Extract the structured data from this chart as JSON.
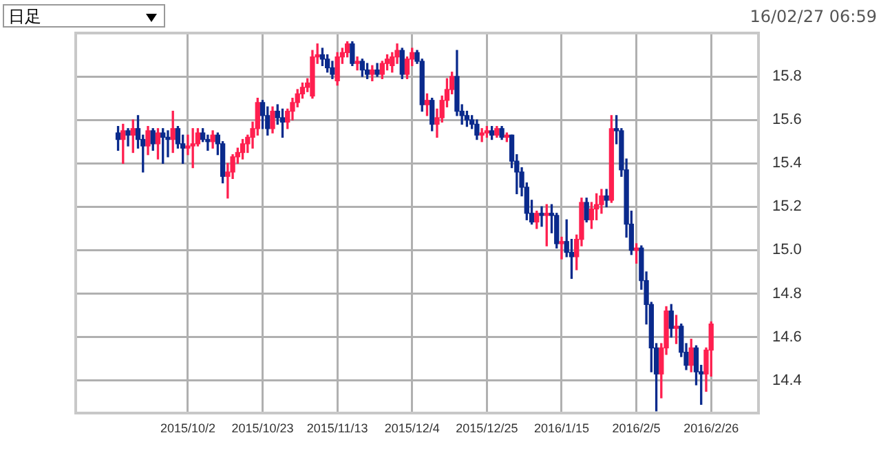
{
  "chart_data": {
    "type": "candlestick",
    "categories": [
      null,
      null,
      null,
      null,
      null,
      null,
      null,
      null,
      null,
      null,
      null,
      null,
      null,
      null,
      "2015/10/2",
      null,
      null,
      null,
      null,
      null,
      null,
      null,
      null,
      null,
      null,
      null,
      null,
      null,
      null,
      "2015/10/23",
      null,
      null,
      null,
      null,
      null,
      null,
      null,
      null,
      null,
      null,
      null,
      null,
      null,
      null,
      "2015/11/13",
      null,
      null,
      null,
      null,
      null,
      null,
      null,
      null,
      null,
      null,
      null,
      null,
      null,
      null,
      "2015/12/4",
      null,
      null,
      null,
      null,
      null,
      null,
      null,
      null,
      null,
      null,
      null,
      null,
      null,
      null,
      "2015/12/25",
      null,
      null,
      null,
      null,
      null,
      null,
      null,
      null,
      null,
      null,
      null,
      null,
      null,
      null,
      "2016/1/15",
      null,
      null,
      null,
      null,
      null,
      null,
      null,
      null,
      null,
      null,
      null,
      null,
      null,
      null,
      "2016/2/5",
      null,
      null,
      null,
      null,
      null,
      null,
      null,
      null,
      null,
      null,
      null,
      null,
      null,
      null,
      "2016/2/26"
    ],
    "ohlc": [
      [
        15.54,
        15.57,
        15.46,
        15.51
      ],
      [
        15.51,
        15.58,
        15.4,
        15.55
      ],
      [
        15.55,
        15.56,
        15.48,
        15.53
      ],
      [
        15.53,
        15.6,
        15.45,
        15.56
      ],
      [
        15.56,
        15.62,
        15.47,
        15.51
      ],
      [
        15.51,
        15.53,
        15.36,
        15.48
      ],
      [
        15.48,
        15.57,
        15.44,
        15.55
      ],
      [
        15.55,
        15.56,
        15.46,
        15.49
      ],
      [
        15.49,
        15.56,
        15.42,
        15.54
      ],
      [
        15.54,
        15.56,
        15.4,
        15.52
      ],
      [
        15.52,
        15.55,
        15.43,
        15.51
      ],
      [
        15.51,
        15.64,
        15.45,
        15.56
      ],
      [
        15.56,
        15.57,
        15.47,
        15.49
      ],
      [
        15.49,
        15.53,
        15.4,
        15.47
      ],
      [
        15.47,
        15.53,
        15.44,
        15.48
      ],
      [
        15.48,
        15.56,
        15.38,
        15.49
      ],
      [
        15.49,
        15.56,
        15.48,
        15.54
      ],
      [
        15.54,
        15.56,
        15.5,
        15.51
      ],
      [
        15.51,
        15.53,
        15.46,
        15.5
      ],
      [
        15.5,
        15.55,
        15.47,
        15.53
      ],
      [
        15.53,
        15.54,
        15.44,
        15.49
      ],
      [
        15.49,
        15.5,
        15.31,
        15.34
      ],
      [
        15.34,
        15.4,
        15.24,
        15.36
      ],
      [
        15.36,
        15.44,
        15.33,
        15.43
      ],
      [
        15.43,
        15.47,
        15.4,
        15.45
      ],
      [
        15.45,
        15.51,
        15.42,
        15.49
      ],
      [
        15.49,
        15.53,
        15.45,
        15.52
      ],
      [
        15.52,
        15.59,
        15.47,
        15.56
      ],
      [
        15.56,
        15.7,
        15.53,
        15.68
      ],
      [
        15.68,
        15.69,
        15.56,
        15.62
      ],
      [
        15.62,
        15.66,
        15.53,
        15.56
      ],
      [
        15.56,
        15.66,
        15.54,
        15.64
      ],
      [
        15.64,
        15.67,
        15.58,
        15.61
      ],
      [
        15.61,
        15.65,
        15.52,
        15.59
      ],
      [
        15.59,
        15.65,
        15.56,
        15.64
      ],
      [
        15.64,
        15.7,
        15.6,
        15.68
      ],
      [
        15.68,
        15.74,
        15.66,
        15.72
      ],
      [
        15.72,
        15.77,
        15.7,
        15.75
      ],
      [
        15.75,
        15.79,
        15.73,
        15.77
      ],
      [
        15.71,
        15.92,
        15.7,
        15.89
      ],
      [
        15.89,
        15.95,
        15.86,
        15.9
      ],
      [
        15.9,
        15.93,
        15.85,
        15.88
      ],
      [
        15.88,
        15.9,
        15.82,
        15.84
      ],
      [
        15.84,
        15.87,
        15.79,
        15.81
      ],
      [
        15.78,
        15.91,
        15.76,
        15.89
      ],
      [
        15.89,
        15.93,
        15.86,
        15.91
      ],
      [
        15.91,
        15.96,
        15.89,
        15.95
      ],
      [
        15.95,
        15.96,
        15.85,
        15.86
      ],
      [
        15.86,
        15.89,
        15.83,
        15.87
      ],
      [
        15.87,
        15.88,
        15.8,
        15.83
      ],
      [
        15.83,
        15.86,
        15.79,
        15.81
      ],
      [
        15.81,
        15.85,
        15.78,
        15.83
      ],
      [
        15.83,
        15.86,
        15.8,
        15.81
      ],
      [
        15.81,
        15.87,
        15.79,
        15.86
      ],
      [
        15.86,
        15.9,
        15.83,
        15.88
      ],
      [
        15.85,
        15.91,
        15.82,
        15.89
      ],
      [
        15.89,
        15.95,
        15.86,
        15.92
      ],
      [
        15.92,
        15.93,
        15.79,
        15.81
      ],
      [
        15.81,
        15.89,
        15.79,
        15.88
      ],
      [
        15.88,
        15.93,
        15.85,
        15.91
      ],
      [
        15.91,
        15.92,
        15.86,
        15.87
      ],
      [
        15.87,
        15.88,
        15.64,
        15.67
      ],
      [
        15.67,
        15.72,
        15.62,
        15.69
      ],
      [
        15.69,
        15.7,
        15.55,
        15.58
      ],
      [
        15.58,
        15.65,
        15.52,
        15.61
      ],
      [
        15.61,
        15.71,
        15.59,
        15.69
      ],
      [
        15.69,
        15.79,
        15.66,
        15.74
      ],
      [
        15.74,
        15.82,
        15.72,
        15.8
      ],
      [
        15.8,
        15.92,
        15.62,
        15.64
      ],
      [
        15.64,
        15.67,
        15.58,
        15.62
      ],
      [
        15.62,
        15.64,
        15.57,
        15.6
      ],
      [
        15.6,
        15.62,
        15.56,
        15.58
      ],
      [
        15.58,
        15.6,
        15.51,
        15.53
      ],
      [
        15.53,
        15.56,
        15.5,
        15.54
      ],
      [
        15.54,
        15.57,
        15.52,
        15.55
      ],
      [
        15.55,
        15.57,
        15.51,
        15.53
      ],
      [
        15.53,
        15.57,
        15.52,
        15.56
      ],
      [
        15.56,
        15.57,
        15.51,
        15.52
      ],
      [
        15.52,
        15.54,
        15.5,
        15.53
      ],
      [
        15.53,
        15.53,
        15.38,
        15.41
      ],
      [
        15.41,
        15.44,
        15.26,
        15.36
      ],
      [
        15.36,
        15.38,
        15.25,
        15.29
      ],
      [
        15.29,
        15.31,
        15.14,
        15.17
      ],
      [
        15.17,
        15.23,
        15.12,
        15.13
      ],
      [
        15.13,
        15.18,
        15.1,
        15.17
      ],
      [
        15.17,
        15.2,
        15.11,
        15.16
      ],
      [
        15.16,
        15.21,
        15.02,
        15.17
      ],
      [
        15.17,
        15.21,
        15.08,
        15.16
      ],
      [
        15.16,
        15.17,
        15.01,
        15.03
      ],
      [
        15.03,
        15.06,
        14.96,
        15.04
      ],
      [
        15.04,
        15.14,
        14.97,
        14.99
      ],
      [
        14.99,
        15.05,
        14.87,
        14.97
      ],
      [
        14.97,
        15.07,
        14.91,
        15.05
      ],
      [
        15.05,
        15.24,
        15.02,
        15.22
      ],
      [
        15.22,
        15.24,
        15.13,
        15.14
      ],
      [
        15.14,
        15.22,
        15.1,
        15.19
      ],
      [
        15.19,
        15.26,
        15.14,
        15.21
      ],
      [
        15.21,
        15.28,
        15.17,
        15.25
      ],
      [
        15.25,
        15.28,
        15.2,
        15.23
      ],
      [
        15.23,
        15.62,
        15.22,
        15.56
      ],
      [
        15.56,
        15.62,
        15.49,
        15.55
      ],
      [
        15.55,
        15.56,
        15.34,
        15.37
      ],
      [
        15.37,
        15.42,
        15.06,
        15.12
      ],
      [
        15.12,
        15.18,
        14.98,
        15.0
      ],
      [
        15.0,
        15.03,
        14.94,
        15.01
      ],
      [
        15.01,
        15.02,
        14.82,
        14.86
      ],
      [
        14.86,
        14.9,
        14.66,
        14.75
      ],
      [
        14.75,
        14.76,
        14.44,
        14.55
      ],
      [
        14.55,
        14.57,
        14.26,
        14.43
      ],
      [
        14.43,
        14.57,
        14.32,
        14.55
      ],
      [
        14.55,
        14.74,
        14.52,
        14.72
      ],
      [
        14.72,
        14.75,
        14.6,
        14.64
      ],
      [
        14.64,
        14.7,
        14.57,
        14.65
      ],
      [
        14.65,
        14.66,
        14.51,
        14.53
      ],
      [
        14.53,
        14.57,
        14.45,
        14.47
      ],
      [
        14.47,
        14.59,
        14.44,
        14.55
      ],
      [
        14.55,
        14.56,
        14.38,
        14.44
      ],
      [
        14.44,
        14.47,
        14.29,
        14.43
      ],
      [
        14.43,
        14.55,
        14.35,
        14.54
      ],
      [
        14.54,
        14.67,
        14.42,
        14.66
      ]
    ],
    "colors": [
      "#0a2a8c",
      "#ff1f4f",
      "#0a2a8c",
      "#ff1f4f",
      "#0a2a8c",
      "#0a2a8c",
      "#ff1f4f",
      "#0a2a8c",
      "#ff1f4f",
      "#0a2a8c",
      "#0a2a8c",
      "#ff1f4f",
      "#0a2a8c",
      "#0a2a8c",
      "#ff1f4f",
      "#ff1f4f",
      "#ff1f4f",
      "#0a2a8c",
      "#0a2a8c",
      "#ff1f4f",
      "#0a2a8c",
      "#0a2a8c",
      "#ff1f4f",
      "#ff1f4f",
      "#ff1f4f",
      "#ff1f4f",
      "#ff1f4f",
      "#ff1f4f",
      "#ff1f4f",
      "#0a2a8c",
      "#0a2a8c",
      "#ff1f4f",
      "#0a2a8c",
      "#0a2a8c",
      "#ff1f4f",
      "#ff1f4f",
      "#ff1f4f",
      "#ff1f4f",
      "#ff1f4f",
      "#ff1f4f",
      "#ff1f4f",
      "#0a2a8c",
      "#0a2a8c",
      "#0a2a8c",
      "#ff1f4f",
      "#ff1f4f",
      "#ff1f4f",
      "#0a2a8c",
      "#ff1f4f",
      "#0a2a8c",
      "#0a2a8c",
      "#ff1f4f",
      "#0a2a8c",
      "#ff1f4f",
      "#ff1f4f",
      "#ff1f4f",
      "#ff1f4f",
      "#0a2a8c",
      "#ff1f4f",
      "#ff1f4f",
      "#0a2a8c",
      "#0a2a8c",
      "#ff1f4f",
      "#0a2a8c",
      "#ff1f4f",
      "#ff1f4f",
      "#ff1f4f",
      "#ff1f4f",
      "#0a2a8c",
      "#0a2a8c",
      "#0a2a8c",
      "#0a2a8c",
      "#0a2a8c",
      "#ff1f4f",
      "#ff1f4f",
      "#0a2a8c",
      "#ff1f4f",
      "#0a2a8c",
      "#ff1f4f",
      "#0a2a8c",
      "#0a2a8c",
      "#0a2a8c",
      "#0a2a8c",
      "#0a2a8c",
      "#ff1f4f",
      "#0a2a8c",
      "#ff1f4f",
      "#0a2a8c",
      "#0a2a8c",
      "#ff1f4f",
      "#0a2a8c",
      "#0a2a8c",
      "#ff1f4f",
      "#ff1f4f",
      "#0a2a8c",
      "#ff1f4f",
      "#ff1f4f",
      "#ff1f4f",
      "#0a2a8c",
      "#ff1f4f",
      "#0a2a8c",
      "#0a2a8c",
      "#0a2a8c",
      "#0a2a8c",
      "#ff1f4f",
      "#0a2a8c",
      "#0a2a8c",
      "#0a2a8c",
      "#0a2a8c",
      "#ff1f4f",
      "#ff1f4f",
      "#0a2a8c",
      "#ff1f4f",
      "#0a2a8c",
      "#0a2a8c",
      "#ff1f4f",
      "#0a2a8c",
      "#0a2a8c",
      "#ff1f4f",
      "#ff1f4f"
    ],
    "ylim": [
      14.25,
      16.0
    ],
    "yticks": [
      {
        "value": 14.4,
        "label": "14.4"
      },
      {
        "value": 14.6,
        "label": "14.6"
      },
      {
        "value": 14.8,
        "label": "14.8"
      },
      {
        "value": 15,
        "label": "15.0"
      },
      {
        "value": 15.2,
        "label": "15.2"
      },
      {
        "value": 15.4,
        "label": "15.4"
      },
      {
        "value": 15.6,
        "label": "15.6"
      },
      {
        "value": 15.8,
        "label": "15.8"
      }
    ],
    "grid": true,
    "annotations": [
      "日足",
      "16/02/27 06:59"
    ]
  }
}
